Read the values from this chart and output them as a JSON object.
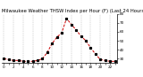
{
  "title": "Milwaukee Weather THSW Index per Hour (F) (Last 24 Hours)",
  "x_values": [
    0,
    1,
    2,
    3,
    4,
    5,
    6,
    7,
    8,
    9,
    10,
    11,
    12,
    13,
    14,
    15,
    16,
    17,
    18,
    19,
    20,
    21,
    22,
    23
  ],
  "y_values": [
    30,
    29,
    28,
    28,
    27,
    27,
    27,
    28,
    30,
    37,
    47,
    54,
    59,
    75,
    68,
    62,
    55,
    50,
    42,
    35,
    29,
    28,
    27,
    27
  ],
  "ylim": [
    25,
    80
  ],
  "yticks": [
    30,
    40,
    50,
    60,
    70,
    80
  ],
  "ytick_labels": [
    "30",
    "40",
    "50",
    "60",
    "70",
    "80"
  ],
  "line_color": "#cc0000",
  "marker_color": "#000000",
  "background_color": "#ffffff",
  "grid_color": "#999999",
  "title_color": "#000000",
  "title_fontsize": 3.8,
  "tick_fontsize": 3.0,
  "line_width": 0.7,
  "marker_size": 1.3
}
